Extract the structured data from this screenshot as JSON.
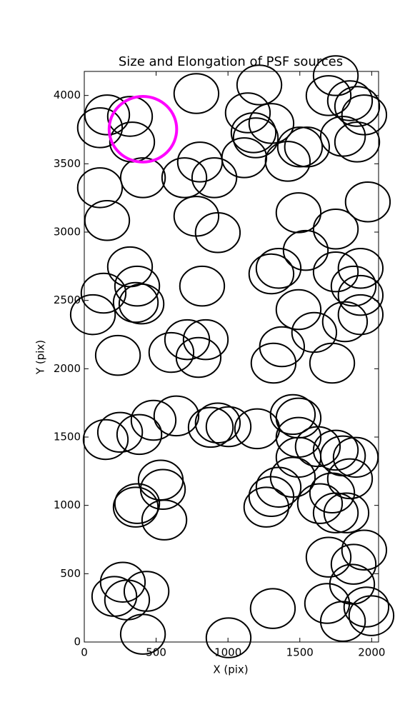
{
  "chart_data": {
    "type": "ellipse",
    "title": "Size and Elongation of PSF sources",
    "x_label": "X (pix)",
    "y_label": "Y (pix)",
    "xlim": [
      0,
      2048
    ],
    "ylim": [
      0,
      4176
    ],
    "xticks": [
      0,
      500,
      1000,
      1500,
      2000
    ],
    "yticks": [
      0,
      500,
      1000,
      1500,
      2000,
      2500,
      3000,
      3500,
      4000
    ],
    "series": [
      {
        "color": "#000000",
        "linewidth": 2,
        "width": 310,
        "height": 290,
        "x": [
          159,
          109,
          318,
          333,
          408,
          109,
          159,
          780,
          1218,
          1138,
          1178,
          1193,
          1302,
          1113,
          805,
          696,
          905,
          780,
          929,
          1416,
          1501,
          1550,
          1700,
          1750,
          1849,
          1899,
          1800,
          1899,
          1948,
          1973,
          1491,
          1750,
          1541,
          1302,
          1352,
          1750,
          1923,
          1874,
          1923,
          1923,
          1814,
          1491,
          1600,
          1376,
          1317,
          1725,
          318,
          368,
          358,
          398,
          134,
          60,
          234,
          606,
          716,
          795,
          845,
          820,
          149,
          249,
          383,
          482,
          641,
          880,
          929,
          1004,
          1203,
          1451,
          1491,
          1491,
          1625,
          1491,
          1750,
          1800,
          1889,
          1849,
          1451,
          1352,
          1302,
          1267,
          1640,
          1725,
          1750,
          1824,
          532,
          547,
          368,
          358,
          557,
          1700,
          1948,
          1874,
          1864,
          1963,
          1690,
          1800,
          1998,
          1312,
          1004,
          408,
          433,
          268,
          209,
          298
        ],
        "values": [
          3858,
          3764,
          3847,
          3659,
          3398,
          3325,
          3085,
          4014,
          4077,
          3873,
          3727,
          3690,
          3795,
          3544,
          3513,
          3398,
          3398,
          3116,
          2996,
          3518,
          3623,
          3623,
          3999,
          4145,
          3962,
          3920,
          3701,
          3659,
          3858,
          3221,
          3142,
          3022,
          2866,
          2694,
          2735,
          2709,
          2735,
          2605,
          2537,
          2396,
          2344,
          2433,
          2266,
          2161,
          2041,
          2041,
          2746,
          2605,
          2485,
          2474,
          2553,
          2396,
          2098,
          2119,
          2213,
          2083,
          2213,
          2605,
          1482,
          1535,
          1519,
          1623,
          1655,
          1571,
          1603,
          1576,
          1561,
          1665,
          1639,
          1498,
          1430,
          1352,
          1404,
          1362,
          1352,
          1195,
          1206,
          1133,
          1065,
          987,
          1013,
          1091,
          945,
          945,
          1185,
          1117,
          1013,
          987,
          893,
          621,
          673,
          569,
          423,
          256,
          282,
          151,
          193,
          245,
          31,
          57,
          371,
          438,
          334,
          308
        ]
      },
      {
        "color": "#ff00ff",
        "linewidth": 4,
        "width": 470,
        "height": 480,
        "x": [
          408
        ],
        "values": [
          3753
        ]
      }
    ]
  }
}
